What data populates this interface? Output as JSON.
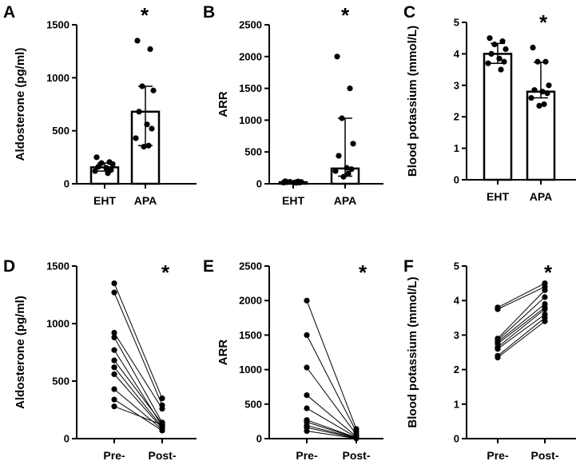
{
  "chart_data": [
    {
      "panel": "A",
      "type": "bar",
      "categories": [
        "EHT",
        "APA"
      ],
      "values": [
        155,
        680
      ],
      "error_low": [
        120,
        360
      ],
      "error_high": [
        195,
        920
      ],
      "points": [
        [
          250,
          205,
          195,
          185,
          160,
          150,
          130,
          120,
          100
        ],
        [
          1350,
          1270,
          920,
          880,
          680,
          560,
          520,
          430,
          360,
          350
        ]
      ],
      "ylabel": "Aldosterone (pg/ml)",
      "ylim": [
        0,
        1500
      ],
      "yticks": [
        "0",
        "500",
        "1000",
        "1500"
      ],
      "annotation": "*"
    },
    {
      "panel": "B",
      "type": "bar",
      "categories": [
        "EHT",
        "APA"
      ],
      "values": [
        25,
        240
      ],
      "error_low": [
        15,
        120
      ],
      "error_high": [
        35,
        1030
      ],
      "points": [
        [
          40,
          35,
          30,
          28,
          25,
          22,
          20,
          18,
          15
        ],
        [
          2000,
          1500,
          1030,
          630,
          440,
          250,
          230,
          200,
          160,
          110
        ]
      ],
      "ylabel": "ARR",
      "ylim": [
        0,
        2500
      ],
      "yticks": [
        "0",
        "500",
        "1000",
        "1500",
        "2000",
        "2500"
      ],
      "annotation": "*"
    },
    {
      "panel": "C",
      "type": "bar",
      "categories": [
        "EHT",
        "APA"
      ],
      "values": [
        4.0,
        2.8
      ],
      "error_low": [
        3.7,
        2.6
      ],
      "error_high": [
        4.33,
        3.73
      ],
      "points": [
        [
          4.5,
          4.4,
          4.3,
          4.15,
          4.0,
          3.85,
          3.75,
          3.7,
          3.5
        ],
        [
          4.2,
          3.75,
          3.75,
          3.0,
          2.85,
          2.8,
          2.75,
          2.6,
          2.4,
          2.35
        ]
      ],
      "ylabel": "Blood potassium (mmol/L)",
      "ylim": [
        0,
        5
      ],
      "yticks": [
        "0",
        "1",
        "2",
        "3",
        "4",
        "5"
      ],
      "annotation": "*"
    },
    {
      "panel": "D",
      "type": "line",
      "categories": [
        "Pre-",
        "Post-"
      ],
      "pairs": [
        [
          1350,
          350
        ],
        [
          1270,
          290
        ],
        [
          920,
          260
        ],
        [
          880,
          140
        ],
        [
          770,
          110
        ],
        [
          680,
          130
        ],
        [
          620,
          100
        ],
        [
          560,
          90
        ],
        [
          430,
          80
        ],
        [
          340,
          70
        ],
        [
          280,
          120
        ]
      ],
      "ylabel": "Aldosterone (pg/ml)",
      "ylim": [
        0,
        1500
      ],
      "yticks": [
        "0",
        "500",
        "1000",
        "1500"
      ],
      "annotation": "*"
    },
    {
      "panel": "E",
      "type": "line",
      "categories": [
        "Pre-",
        "Post-"
      ],
      "pairs": [
        [
          2000,
          140
        ],
        [
          1500,
          100
        ],
        [
          1030,
          60
        ],
        [
          630,
          30
        ],
        [
          440,
          20
        ],
        [
          270,
          15
        ],
        [
          240,
          10
        ],
        [
          190,
          8
        ],
        [
          160,
          5
        ],
        [
          110,
          3
        ]
      ],
      "ylabel": "ARR",
      "ylim": [
        0,
        2500
      ],
      "yticks": [
        "0",
        "500",
        "1000",
        "1500",
        "2000",
        "2500"
      ],
      "annotation": "*"
    },
    {
      "panel": "F",
      "type": "line",
      "categories": [
        "Pre-",
        "Post-"
      ],
      "pairs": [
        [
          3.8,
          4.5
        ],
        [
          3.75,
          4.4
        ],
        [
          2.9,
          4.3
        ],
        [
          2.85,
          4.1
        ],
        [
          2.8,
          3.9
        ],
        [
          2.75,
          3.8
        ],
        [
          2.65,
          3.75
        ],
        [
          2.6,
          3.6
        ],
        [
          2.4,
          3.5
        ],
        [
          2.35,
          3.4
        ]
      ],
      "ylabel": "Blood potassium (mmol/L)",
      "ylim": [
        0,
        5
      ],
      "yticks": [
        "0",
        "1",
        "2",
        "3",
        "4",
        "5"
      ],
      "annotation": "*"
    }
  ]
}
